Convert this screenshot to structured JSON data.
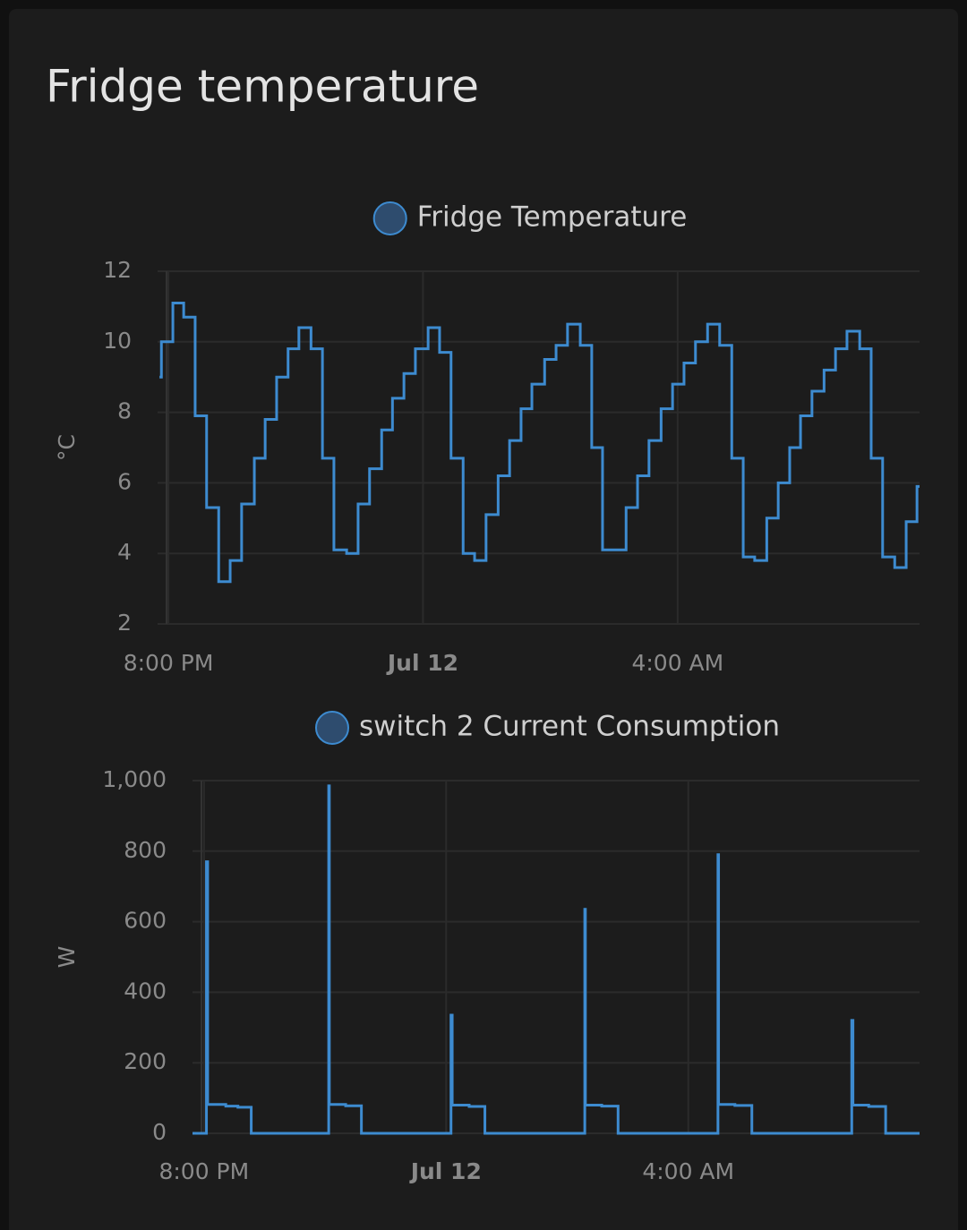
{
  "card": {
    "title": "Fridge temperature"
  },
  "chart_data": [
    {
      "type": "line",
      "step": true,
      "y_label": "°C",
      "x": [
        19.86,
        19.89,
        20.07,
        20.24,
        20.42,
        20.6,
        20.79,
        20.97,
        21.15,
        21.35,
        21.52,
        21.7,
        21.88,
        22.05,
        22.24,
        22.42,
        22.6,
        22.8,
        22.98,
        23.16,
        23.35,
        23.52,
        23.7,
        23.88,
        24.08,
        24.26,
        24.44,
        24.63,
        24.81,
        24.99,
        25.18,
        25.36,
        25.54,
        25.71,
        25.91,
        26.09,
        26.27,
        26.47,
        26.65,
        26.82,
        27.19,
        27.37,
        27.55,
        27.74,
        27.92,
        28.1,
        28.28,
        28.47,
        28.66,
        28.85,
        29.03,
        29.21,
        29.4,
        29.58,
        29.76,
        29.93,
        30.11,
        30.3,
        30.48,
        30.66,
        30.86,
        31.04,
        31.22,
        31.41,
        31.59,
        31.76
      ],
      "series": [
        {
          "name": "Fridge Temperature",
          "color": "#3d8bd0",
          "values": [
            9.0,
            10.0,
            11.1,
            10.7,
            7.9,
            5.3,
            3.2,
            3.8,
            5.4,
            6.7,
            7.8,
            9.0,
            9.8,
            10.4,
            9.8,
            6.7,
            4.1,
            4.0,
            5.4,
            6.4,
            7.5,
            8.4,
            9.1,
            9.8,
            10.4,
            9.7,
            6.7,
            4.0,
            3.8,
            5.1,
            6.2,
            7.2,
            8.1,
            8.8,
            9.5,
            9.9,
            10.5,
            9.9,
            7.0,
            4.1,
            5.3,
            6.2,
            7.2,
            8.1,
            8.8,
            9.4,
            10.0,
            10.5,
            9.9,
            6.7,
            3.9,
            3.8,
            5.0,
            6.0,
            7.0,
            7.9,
            8.6,
            9.2,
            9.8,
            10.3,
            9.8,
            6.7,
            3.9,
            3.6,
            4.9,
            5.9
          ]
        }
      ],
      "xlim": [
        19.83,
        31.8
      ],
      "xticks": [
        {
          "value": 20,
          "label": "8:00 PM"
        },
        {
          "value": 24,
          "label": "Jul 12"
        },
        {
          "value": 28,
          "label": "4:00 AM"
        }
      ],
      "ylim": [
        2,
        12
      ],
      "yticks": [
        2,
        4,
        6,
        8,
        10,
        12
      ],
      "grid": true
    },
    {
      "type": "line",
      "step": true,
      "y_label": "W",
      "x": [
        19.81,
        20.04,
        20.06,
        20.36,
        20.56,
        20.78,
        22.06,
        22.07,
        22.34,
        22.6,
        24.08,
        24.1,
        24.38,
        24.64,
        26.29,
        26.3,
        26.57,
        26.84,
        28.49,
        28.5,
        28.77,
        29.05,
        30.7,
        30.72,
        30.98,
        31.26
      ],
      "series": [
        {
          "name": "switch 2 Current Consumption",
          "color": "#3d8bd0",
          "values": [
            0,
            770,
            82,
            77,
            74,
            0,
            985,
            82,
            78,
            0,
            335,
            80,
            76,
            0,
            635,
            80,
            77,
            0,
            790,
            82,
            79,
            0,
            320,
            80,
            76,
            0
          ]
        }
      ],
      "xlim": [
        19.81,
        31.82
      ],
      "xticks": [
        {
          "value": 20,
          "label": "8:00 PM"
        },
        {
          "value": 24,
          "label": "Jul 12"
        },
        {
          "value": 28,
          "label": "4:00 AM"
        }
      ],
      "ylim": [
        0,
        1000
      ],
      "yticks": [
        0,
        200,
        400,
        600,
        800,
        {
          "value": 1000,
          "label": "1,000"
        }
      ],
      "grid": true
    }
  ]
}
